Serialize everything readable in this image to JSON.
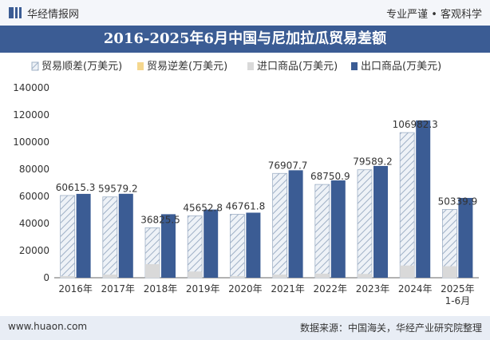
{
  "header": {
    "brand": "华经情报网",
    "slogan": "专业严谨 • 客观科学"
  },
  "chart_data": {
    "type": "bar",
    "title": "2016-2025年6月中国与尼加拉瓜贸易差额",
    "categories": [
      "2016年",
      "2017年",
      "2018年",
      "2019年",
      "2020年",
      "2021年",
      "2022年",
      "2023年",
      "2024年",
      "2025年\n1-6月"
    ],
    "series": [
      {
        "name": "贸易顺差(万美元)",
        "values": [
          60615.3,
          59579.2,
          36825.5,
          45652.8,
          46761.8,
          76907.7,
          68750.9,
          79589.2,
          106982.3,
          50339.9
        ],
        "color": "#dfe7f0"
      },
      {
        "name": "贸易逆差(万美元)",
        "values": [
          0,
          0,
          0,
          0,
          0,
          0,
          0,
          0,
          0,
          0
        ],
        "color": "#f5d78e"
      },
      {
        "name": "进口商品(万美元)",
        "values": [
          1200,
          2300,
          10000,
          4600,
          1200,
          2300,
          3000,
          2800,
          9000,
          8500
        ],
        "color": "#d9d9d9"
      },
      {
        "name": "出口商品(万美元)",
        "values": [
          61815,
          61879,
          46826,
          50253,
          47962,
          79208,
          71751,
          82389,
          115982,
          58840
        ],
        "color": "#3b5c94"
      }
    ],
    "data_labels": [
      "60615.3",
      "59579.2",
      "36825.5",
      "45652.8",
      "46761.8",
      "76907.7",
      "68750.9",
      "79589.2",
      "106982.3",
      "50339.9"
    ],
    "ylim": [
      0,
      140000
    ],
    "yticks": [
      "0",
      "20000",
      "40000",
      "60000",
      "80000",
      "100000",
      "120000",
      "140000"
    ],
    "ytick_values": [
      0,
      20000,
      40000,
      60000,
      80000,
      100000,
      120000,
      140000
    ],
    "legend_position": "top"
  },
  "footer": {
    "website": "www.huaon.com",
    "source": "数据来源：中国海关，华经产业研究院整理"
  }
}
